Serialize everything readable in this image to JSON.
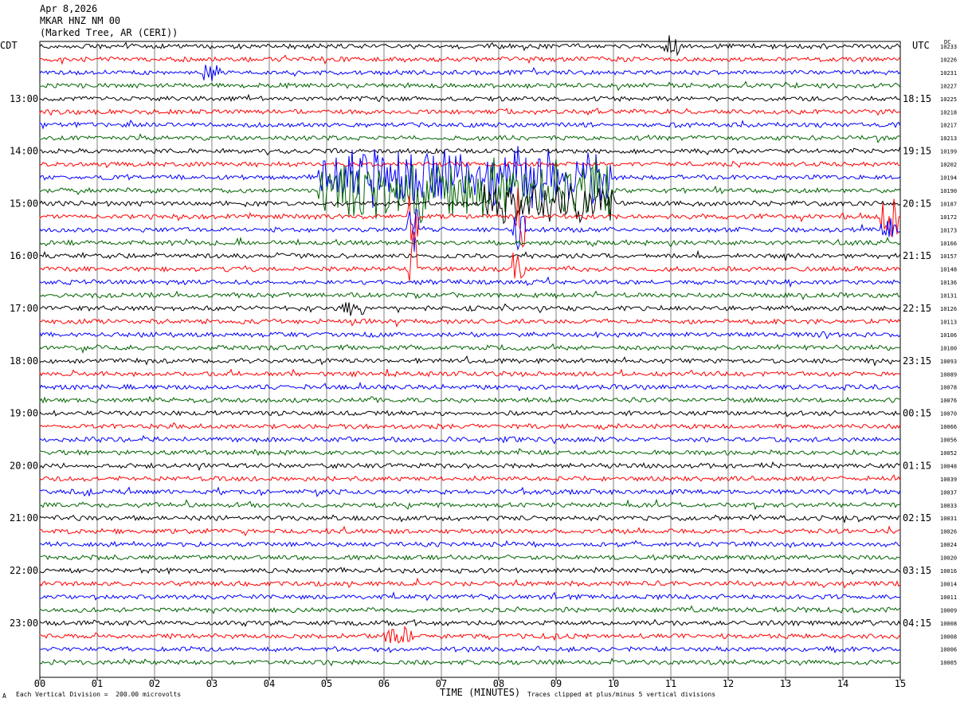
{
  "header": {
    "date": "Apr 8,2026",
    "channel": "MKAR HNZ NM 00",
    "location": "(Marked Tree, AR (CERI))"
  },
  "timezones": {
    "left": "CDT",
    "right": "UTC",
    "dc_label": "DC"
  },
  "footer": {
    "scale_note": "Each Vertical Division =  200.00 microvolts",
    "x_title": "TIME (MINUTES)",
    "clip_note": "Traces clipped at plus/minus 5 vertical divisions",
    "corner_mark": "A"
  },
  "colors": {
    "cycle": [
      "#000000",
      "#ff0000",
      "#0000ff",
      "#006400"
    ],
    "grid": "#808080"
  },
  "chart_data": {
    "type": "line",
    "x_ticks": [
      "00",
      "01",
      "02",
      "03",
      "04",
      "05",
      "06",
      "07",
      "08",
      "09",
      "10",
      "11",
      "12",
      "13",
      "14",
      "15"
    ],
    "xlim": [
      0,
      15
    ],
    "left_hour_labels": [
      {
        "row": 4,
        "label": "13:00"
      },
      {
        "row": 8,
        "label": "14:00"
      },
      {
        "row": 12,
        "label": "15:00"
      },
      {
        "row": 16,
        "label": "16:00"
      },
      {
        "row": 20,
        "label": "17:00"
      },
      {
        "row": 24,
        "label": "18:00"
      },
      {
        "row": 28,
        "label": "19:00"
      },
      {
        "row": 32,
        "label": "20:00"
      },
      {
        "row": 36,
        "label": "21:00"
      },
      {
        "row": 40,
        "label": "22:00"
      },
      {
        "row": 44,
        "label": "23:00"
      }
    ],
    "right_hour_labels": [
      {
        "row": 4,
        "label": "18:15"
      },
      {
        "row": 8,
        "label": "19:15"
      },
      {
        "row": 12,
        "label": "20:15"
      },
      {
        "row": 16,
        "label": "21:15"
      },
      {
        "row": 20,
        "label": "22:15"
      },
      {
        "row": 24,
        "label": "23:15"
      },
      {
        "row": 28,
        "label": "00:15"
      },
      {
        "row": 32,
        "label": "01:15"
      },
      {
        "row": 36,
        "label": "02:15"
      },
      {
        "row": 40,
        "label": "03:15"
      },
      {
        "row": 44,
        "label": "04:15"
      }
    ],
    "dc_offsets": [
      "10233",
      "10226",
      "10231",
      "10227",
      "10225",
      "10218",
      "10217",
      "10213",
      "10199",
      "10202",
      "10194",
      "10190",
      "10187",
      "10172",
      "10173",
      "10166",
      "10157",
      "10148",
      "10136",
      "10131",
      "10126",
      "10113",
      "10106",
      "10100",
      "10093",
      "10089",
      "10078",
      "10076",
      "10070",
      "10066",
      "10056",
      "10052",
      "10048",
      "10039",
      "10037",
      "10033",
      "10031",
      "10026",
      "10024",
      "10020",
      "10016",
      "10014",
      "10011",
      "10009",
      "10008",
      "10008",
      "10006",
      "10005"
    ],
    "events": [
      {
        "row": 10,
        "start": 4.9,
        "end": 9.9,
        "amp": 2.5
      },
      {
        "row": 11,
        "start": 4.9,
        "end": 9.9,
        "amp": 2.6
      },
      {
        "row": 12,
        "start": 7.8,
        "end": 10.0,
        "amp": 1.6
      },
      {
        "row": 11,
        "start": 6.5,
        "end": 6.6,
        "amp": 3.5
      },
      {
        "row": 13,
        "start": 6.45,
        "end": 6.55,
        "amp": 3.0
      },
      {
        "row": 14,
        "start": 6.45,
        "end": 6.55,
        "amp": 3.0
      },
      {
        "row": 17,
        "start": 6.45,
        "end": 6.55,
        "amp": 3.0
      },
      {
        "row": 11,
        "start": 8.3,
        "end": 8.4,
        "amp": 3.5
      },
      {
        "row": 13,
        "start": 8.3,
        "end": 8.4,
        "amp": 3.0
      },
      {
        "row": 14,
        "start": 8.3,
        "end": 8.4,
        "amp": 2.6
      },
      {
        "row": 17,
        "start": 8.3,
        "end": 8.4,
        "amp": 2.5
      },
      {
        "row": 13,
        "start": 14.7,
        "end": 14.9,
        "amp": 2.0
      },
      {
        "row": 14,
        "start": 14.7,
        "end": 14.9,
        "amp": 1.0
      },
      {
        "row": 2,
        "start": 2.9,
        "end": 3.1,
        "amp": 1.0
      },
      {
        "row": 0,
        "start": 10.9,
        "end": 11.1,
        "amp": 1.0
      },
      {
        "row": 20,
        "start": 5.3,
        "end": 5.6,
        "amp": 0.8
      },
      {
        "row": 45,
        "start": 6.0,
        "end": 6.5,
        "amp": 0.8
      }
    ]
  }
}
